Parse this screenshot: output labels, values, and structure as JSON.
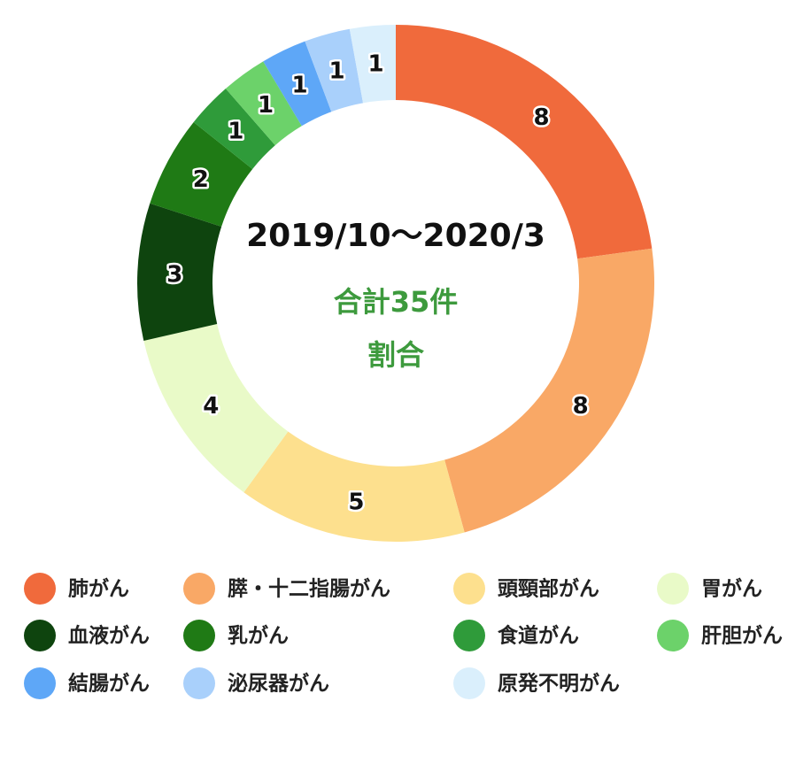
{
  "chart_data": {
    "type": "donut",
    "title": "2019/10〜2020/3",
    "subtitle": "合計35件",
    "annotation": "割合",
    "categories": [
      "肺がん",
      "膵・十二指腸がん",
      "頭頸部がん",
      "胃がん",
      "血液がん",
      "乳がん",
      "食道がん",
      "肝胆がん",
      "結腸がん",
      "泌尿器がん",
      "原発不明がん"
    ],
    "values": [
      8,
      8,
      5,
      4,
      3,
      2,
      1,
      1,
      1,
      1,
      1
    ],
    "colors": [
      "#f06a3c",
      "#f9a866",
      "#fde08e",
      "#e9fac8",
      "#0e440e",
      "#1f7a15",
      "#2f9b3a",
      "#6cd26a",
      "#5ea7f7",
      "#a9d0fb",
      "#daeffc"
    ]
  }
}
